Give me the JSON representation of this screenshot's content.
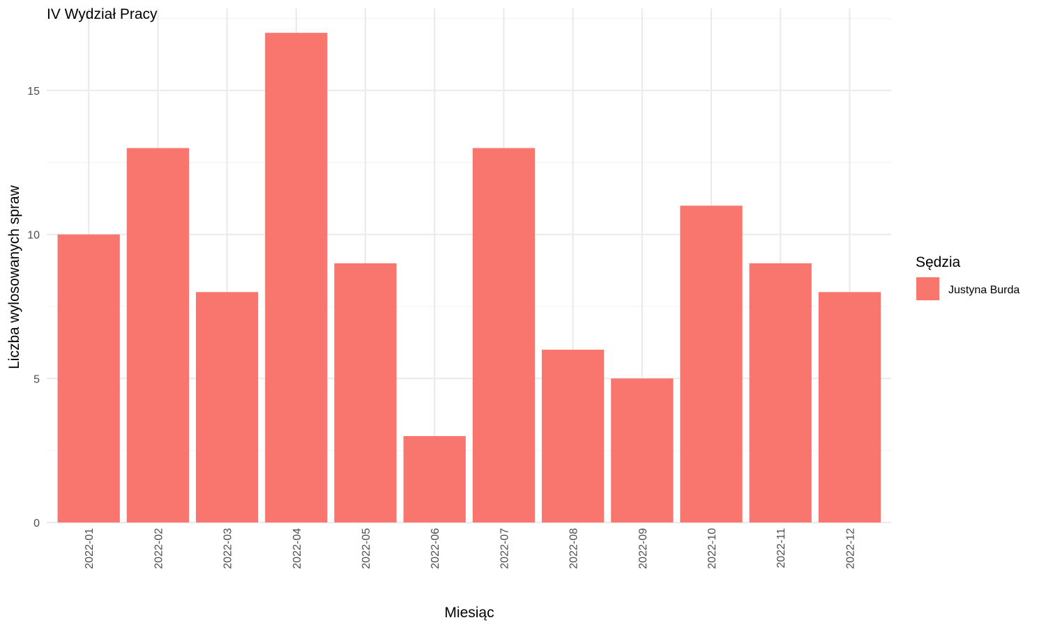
{
  "chart_data": {
    "type": "bar",
    "title": "IV Wydział Pracy",
    "xlabel": "Miesiąc",
    "ylabel": "Liczba wylosowanych spraw",
    "categories": [
      "2022-01",
      "2022-02",
      "2022-03",
      "2022-04",
      "2022-05",
      "2022-06",
      "2022-07",
      "2022-08",
      "2022-09",
      "2022-10",
      "2022-11",
      "2022-12"
    ],
    "series": [
      {
        "name": "Justyna Burda",
        "values": [
          10,
          13,
          8,
          17,
          9,
          3,
          13,
          6,
          5,
          11,
          9,
          8
        ],
        "color": "#f8766d"
      }
    ],
    "ylim": [
      0,
      17.85
    ],
    "yticks": [
      0,
      5,
      10,
      15
    ],
    "grid": true,
    "legend": {
      "title": "Sędzia",
      "position": "right"
    }
  }
}
